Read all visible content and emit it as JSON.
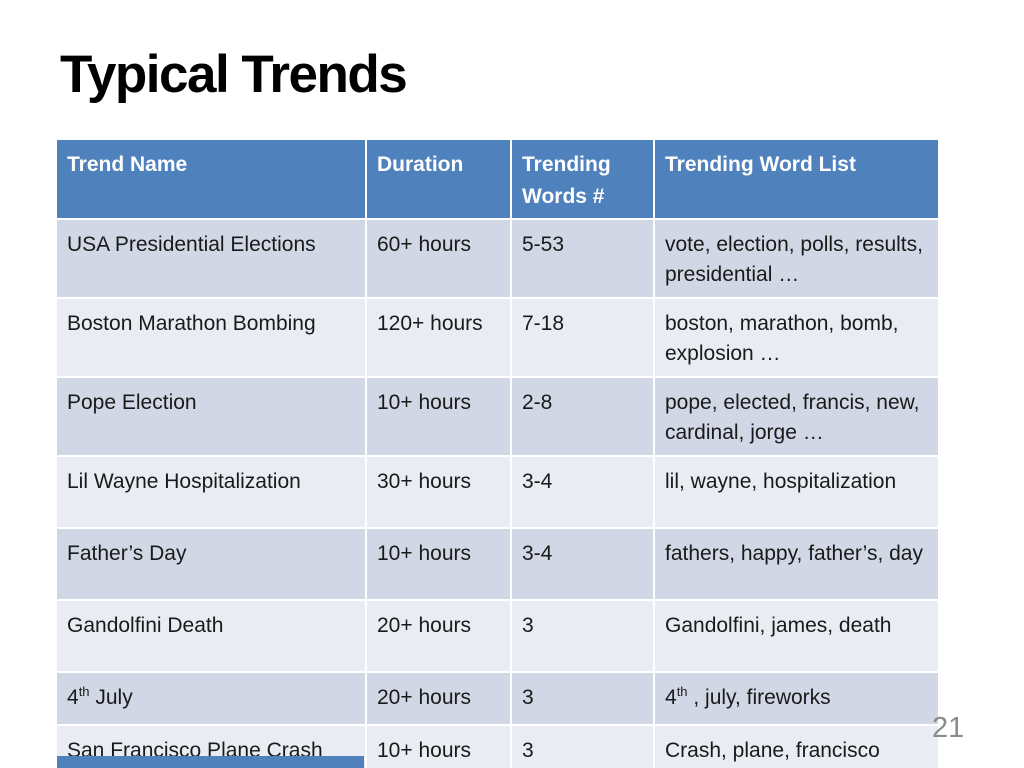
{
  "slide": {
    "title": "Typical Trends",
    "page_number": "21"
  },
  "table": {
    "headers": [
      "Trend Name",
      "Duration",
      "Trending Words #",
      "Trending Word List"
    ],
    "rows": [
      [
        "USA Presidential Elections",
        "60+ hours",
        "5-53",
        "vote, election, polls, results, presidential …"
      ],
      [
        "Boston Marathon Bombing",
        "120+ hours",
        "7-18",
        "boston, marathon, bomb, explosion …"
      ],
      [
        "Pope Election",
        "10+ hours",
        "2-8",
        "pope, elected, francis, new, cardinal, jorge …"
      ],
      [
        "Lil Wayne Hospitalization",
        "30+ hours",
        "3-4",
        "lil, wayne, hospitalization"
      ],
      [
        "Father’s Day",
        "10+ hours",
        "3-4",
        "fathers, happy, father’s, day"
      ],
      [
        "Gandolfini Death",
        "20+ hours",
        "3",
        "Gandolfini, james, death"
      ],
      [
        "4th July",
        "20+ hours",
        "3",
        "4th , july, fireworks"
      ],
      [
        "San Francisco Plane Crash",
        "10+ hours",
        "3",
        "Crash, plane, francisco"
      ]
    ]
  },
  "colors": {
    "header_bg": "#4f81bd",
    "header_text": "#ffffff",
    "row_band_dark": "#d1d7e5",
    "row_band_light": "#e9ecf3",
    "body_text": "#1a1a1a",
    "page_number_text": "#8c8c8c"
  }
}
